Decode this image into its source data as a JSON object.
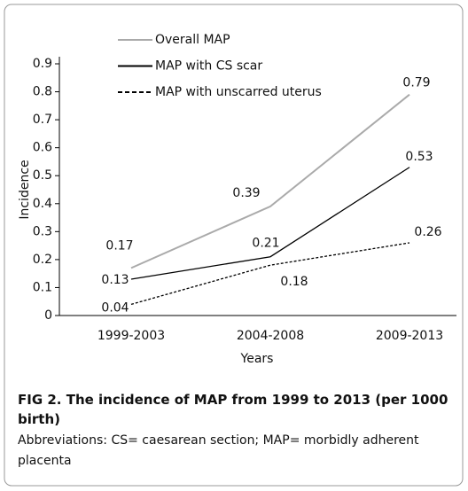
{
  "chart_data": {
    "type": "line",
    "categories": [
      "1999-2003",
      "2004-2008",
      "2009-2013"
    ],
    "series": [
      {
        "name": "Overall MAP",
        "color": "#aaaaaa",
        "dash": false,
        "values": [
          0.17,
          0.39,
          0.79
        ]
      },
      {
        "name": "MAP with CS scar",
        "color": "#000000",
        "dash": false,
        "values": [
          0.13,
          0.21,
          0.53
        ]
      },
      {
        "name": "MAP with unscarred uterus",
        "color": "#000000",
        "dash": true,
        "values": [
          0.04,
          0.18,
          0.26
        ]
      }
    ],
    "ylabel": "Incidence",
    "xlabel": "Years",
    "ylim": [
      0,
      0.9
    ],
    "yticks": [
      0,
      0.1,
      0.2,
      0.3,
      0.4,
      0.5,
      0.6,
      0.7,
      0.8,
      0.9
    ],
    "legend": "top"
  },
  "caption": {
    "title": "FIG 2. The incidence of MAP from 1999 to 2013 (per 1000 birth)",
    "note": "Abbreviations: CS= caesarean section; MAP= morbidly adherent placenta"
  }
}
